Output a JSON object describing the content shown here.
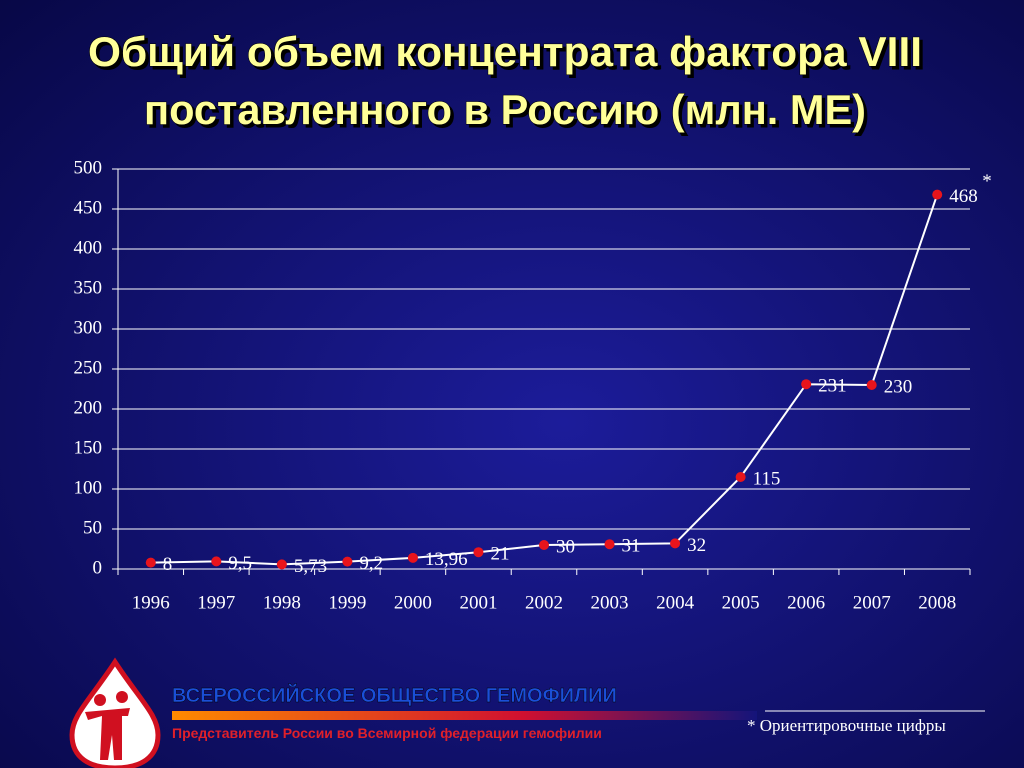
{
  "chart_data": {
    "type": "line",
    "title": [
      "Общий объем концентрата фактора VIII",
      "поставленного в Россию  (млн. МЕ)"
    ],
    "categories": [
      "1996",
      "1997",
      "1998",
      "1999",
      "2000",
      "2001",
      "2002",
      "2003",
      "2004",
      "2005",
      "2006",
      "2007",
      "2008"
    ],
    "values": [
      8,
      9.5,
      5.73,
      9.2,
      13.96,
      21,
      30,
      31,
      32,
      115,
      231,
      230,
      468
    ],
    "value_labels": [
      "8",
      "9,5",
      "5,73",
      "9,2",
      "13,96",
      "21",
      "30",
      "31",
      "32",
      "115",
      "231",
      "230",
      "468"
    ],
    "line_color": "#ffffff",
    "marker_color": "#e8141c",
    "ylim": [
      0,
      500
    ],
    "yticks": [
      0,
      50,
      100,
      150,
      200,
      250,
      300,
      350,
      400,
      450,
      500
    ],
    "grid": true,
    "annotation": "*"
  },
  "footer": {
    "organization": "ВСЕРОССИЙСКОЕ ОБЩЕСТВО ГЕМОФИЛИИ",
    "subtitle": "Представитель России во Всемирной федерации гемофилии",
    "footnote": "* Ориентировочные цифры"
  }
}
